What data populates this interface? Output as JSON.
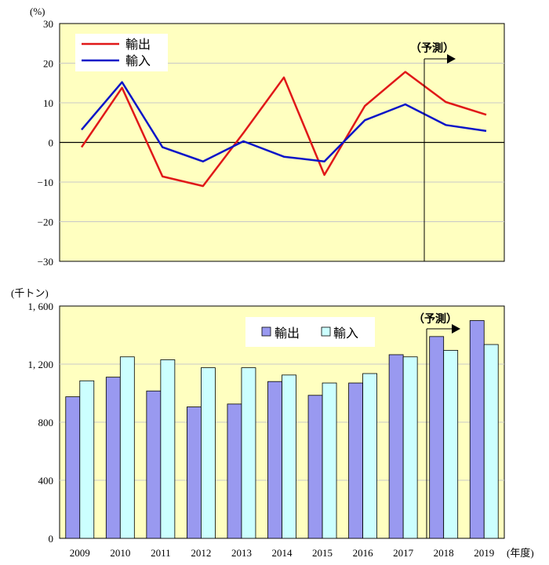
{
  "chart_data": [
    {
      "type": "line",
      "unit_label": "(%)",
      "ylim": [
        -30,
        30
      ],
      "yticks": [
        "30",
        "20",
        "10",
        "0",
        "−10",
        "−20",
        "−30"
      ],
      "categories": [
        "2009",
        "2010",
        "2011",
        "2012",
        "2013",
        "2014",
        "2015",
        "2016",
        "2017",
        "2018",
        "2019"
      ],
      "series": [
        {
          "name": "輸出",
          "color": "#e01818",
          "values": [
            -1.2,
            13.8,
            -8.6,
            -11.0,
            2.4,
            16.4,
            -8.2,
            9.2,
            17.8,
            10.2,
            7.0
          ]
        },
        {
          "name": "輸入",
          "color": "#0a14c8",
          "values": [
            3.2,
            15.2,
            -1.2,
            -4.8,
            0.3,
            -3.6,
            -4.8,
            5.6,
            9.6,
            4.4,
            2.9
          ]
        }
      ],
      "forecast_label": "（予測）",
      "forecast_from": "2018",
      "background": "#ffffc0",
      "grid": true,
      "legend_position": "top-left"
    },
    {
      "type": "bar",
      "unit_label": "(千トン)",
      "ylim": [
        0,
        1600
      ],
      "yticks": [
        "1, 600",
        "1, 200",
        "800",
        "400",
        "0"
      ],
      "categories": [
        "2009",
        "2010",
        "2011",
        "2012",
        "2013",
        "2014",
        "2015",
        "2016",
        "2017",
        "2018",
        "2019"
      ],
      "xlabel": "(年度)",
      "series": [
        {
          "name": "輸出",
          "color": "#9999f0",
          "values": [
            975,
            1110,
            1015,
            905,
            925,
            1080,
            985,
            1070,
            1265,
            1390,
            1500
          ]
        },
        {
          "name": "輸入",
          "color": "#ccffff",
          "values": [
            1085,
            1250,
            1230,
            1175,
            1175,
            1125,
            1070,
            1135,
            1250,
            1295,
            1335
          ]
        }
      ],
      "forecast_label": "（予測）",
      "forecast_from": "2018",
      "background": "#ffffc0",
      "grid": true,
      "legend_position": "top-right"
    }
  ]
}
